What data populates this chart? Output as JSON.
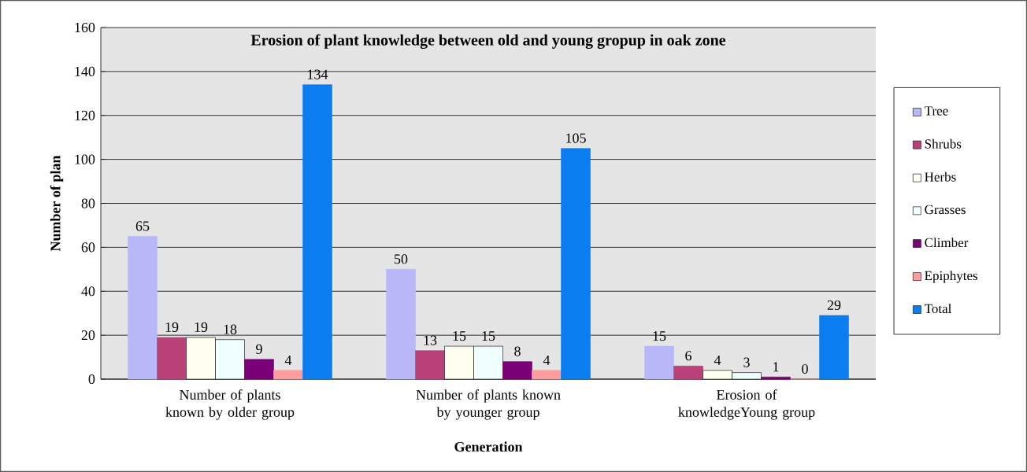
{
  "chart_data": {
    "type": "bar",
    "title": "Erosion  of plant knowledge between old and young gropup in oak zone",
    "xlabel": "Generation",
    "ylabel": "Number of plan",
    "categories": [
      "Number of plants known by older group",
      "Number of plants known by younger group",
      "Erosion of knowledgeYoung group"
    ],
    "series": [
      {
        "name": "Tree",
        "color": "#b8b8f8",
        "values": [
          65,
          50,
          15
        ]
      },
      {
        "name": "Shrubs",
        "color": "#b94078",
        "values": [
          19,
          13,
          6
        ]
      },
      {
        "name": "Herbs",
        "color": "#fffff0",
        "values": [
          19,
          15,
          4
        ]
      },
      {
        "name": "Grasses",
        "color": "#f0ffff",
        "values": [
          18,
          15,
          3
        ]
      },
      {
        "name": "Climber",
        "color": "#7a0078",
        "values": [
          9,
          8,
          1
        ]
      },
      {
        "name": "Epiphytes",
        "color": "#ff9c9c",
        "values": [
          4,
          4,
          0
        ]
      },
      {
        "name": "Total",
        "color": "#0a7ef0",
        "values": [
          134,
          105,
          29
        ]
      }
    ],
    "ylim": [
      0,
      160
    ],
    "yticks": [
      0,
      20,
      40,
      60,
      80,
      100,
      120,
      140,
      160
    ],
    "grid": "y",
    "legend": "right",
    "data_labels": true
  }
}
